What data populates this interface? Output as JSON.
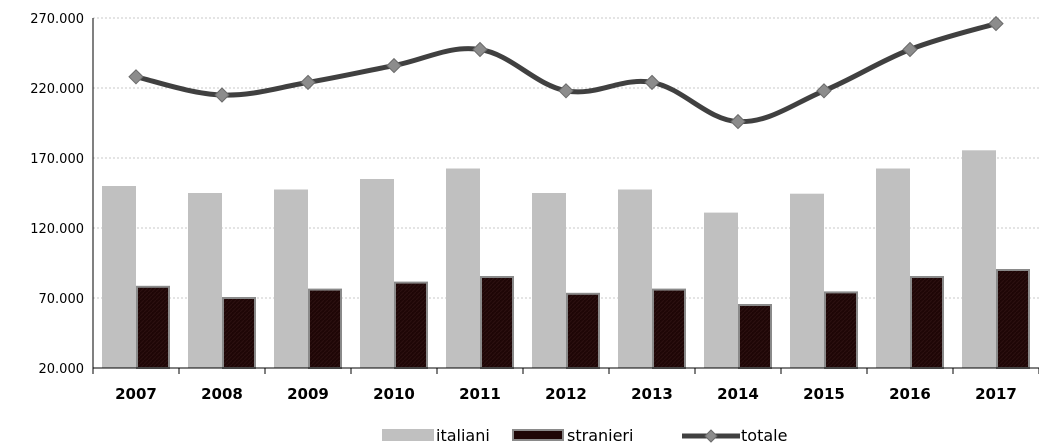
{
  "chart_data": {
    "type": "bar",
    "categories": [
      "2007",
      "2008",
      "2009",
      "2010",
      "2011",
      "2012",
      "2013",
      "2014",
      "2015",
      "2016",
      "2017"
    ],
    "series": [
      {
        "name": "italiani",
        "type": "bar",
        "color": "#c0c0c0",
        "values": [
          150000,
          145000,
          147500,
          155000,
          162500,
          145000,
          147500,
          131000,
          144500,
          162500,
          175500
        ]
      },
      {
        "name": "stranieri",
        "type": "bar",
        "color": "#1e0606",
        "values": [
          78000,
          70000,
          76000,
          81000,
          85000,
          73000,
          76000,
          65000,
          74000,
          85000,
          90000
        ]
      },
      {
        "name": "totale",
        "type": "line",
        "color": "#404040",
        "marker_color": "#8c8c8c",
        "values": [
          228000,
          215000,
          224000,
          236000,
          247500,
          218000,
          224000,
          196000,
          218000,
          247500,
          266000
        ]
      }
    ],
    "yticks": [
      "20.000",
      "70.000",
      "120.000",
      "170.000",
      "220.000",
      "270.000"
    ],
    "ylim": [
      20000,
      270000
    ],
    "grid": true,
    "legend_position": "bottom-center"
  }
}
